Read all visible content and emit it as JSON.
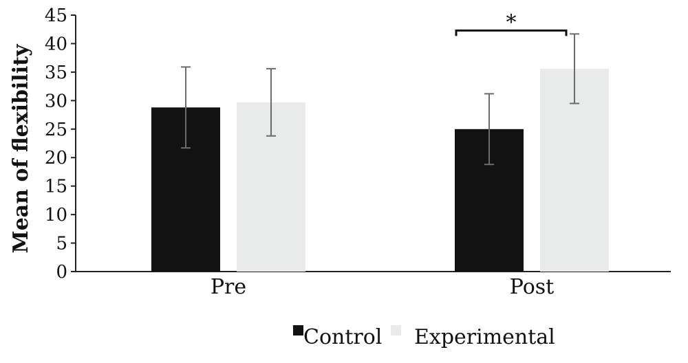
{
  "chart_data": {
    "type": "bar",
    "categories": [
      "Pre",
      "Post"
    ],
    "series": [
      {
        "name": "Control",
        "color": "#121212",
        "values": [
          28.8,
          25.0
        ],
        "error": [
          7.1,
          6.2
        ]
      },
      {
        "name": "Experimental",
        "color": "#e8ebea",
        "values": [
          29.7,
          35.6
        ],
        "error": [
          5.9,
          6.1
        ]
      }
    ],
    "ylabel": "Mean of flexibility",
    "xlabel": "",
    "ylim": [
      0,
      45
    ],
    "yticks": [
      0,
      5,
      10,
      15,
      20,
      25,
      30,
      35,
      40,
      45
    ],
    "grid": false,
    "legend_position": "bottom-center",
    "annotations": [
      {
        "text": "*",
        "category": "Post",
        "type": "significance-bracket",
        "y": 42.3
      }
    ],
    "error_bar_color": "#6b6b6b"
  }
}
